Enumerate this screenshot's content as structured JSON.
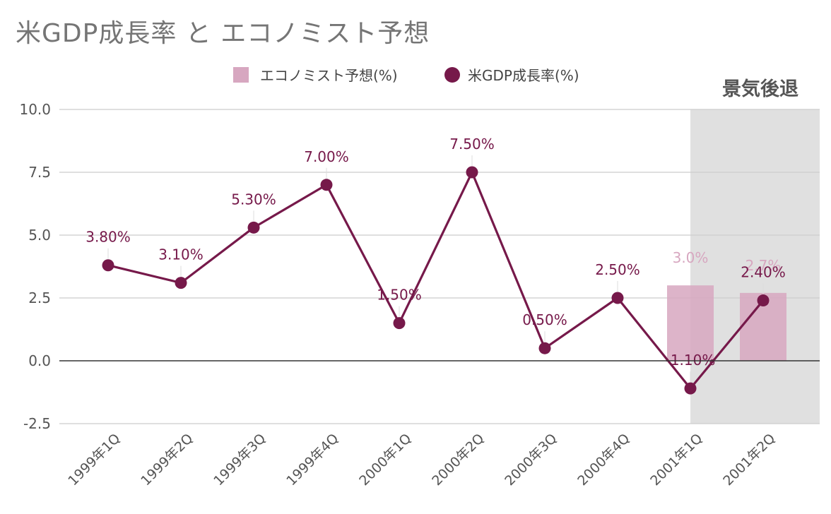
{
  "title": "米GDP成長率 と エコノミスト予想",
  "legend": {
    "position": "top",
    "items": [
      {
        "label": "エコノミスト予想(%)",
        "color": "#d7a7c0",
        "shape": "square"
      },
      {
        "label": "米GDP成長率(%)",
        "color": "#76194a",
        "shape": "circle"
      }
    ]
  },
  "recession_label": "景気後退",
  "chart_data": {
    "type": "line",
    "title": "米GDP成長率 と エコノミスト予想",
    "categories": [
      "1999年1Q",
      "1999年2Q",
      "1999年3Q",
      "1999年4Q",
      "2000年1Q",
      "2000年2Q",
      "2000年3Q",
      "2000年4Q",
      "2001年1Q",
      "2001年2Q"
    ],
    "y_ticks": [
      "10.0",
      "7.5",
      "5.0",
      "2.5",
      "0.0",
      "-2.5"
    ],
    "ylim": [
      -2.5,
      10.0
    ],
    "grid": true,
    "legend": "top",
    "series": [
      {
        "name": "米GDP成長率(%)",
        "type": "line",
        "color": "#76194a",
        "values": [
          3.8,
          3.1,
          5.3,
          7.0,
          1.5,
          7.5,
          0.5,
          2.5,
          -1.1,
          2.4
        ],
        "labels": [
          "3.80%",
          "3.10%",
          "5.30%",
          "7.00%",
          "1.50%",
          "7.50%",
          "0.50%",
          "2.50%",
          "-1.10%",
          "2.40%"
        ]
      },
      {
        "name": "エコノミスト予想(%)",
        "type": "bar",
        "color": "#d7a7c0",
        "values": [
          null,
          null,
          null,
          null,
          null,
          null,
          null,
          null,
          3.0,
          2.7
        ],
        "labels": [
          "",
          "",
          "",
          "",
          "",
          "",
          "",
          "",
          "3.0%",
          "2.7%"
        ]
      }
    ],
    "shaded_region": {
      "label": "景気後退",
      "from_category": "2001年1Q",
      "to_category": "2001年2Q",
      "color": "#e0e0e0"
    }
  }
}
